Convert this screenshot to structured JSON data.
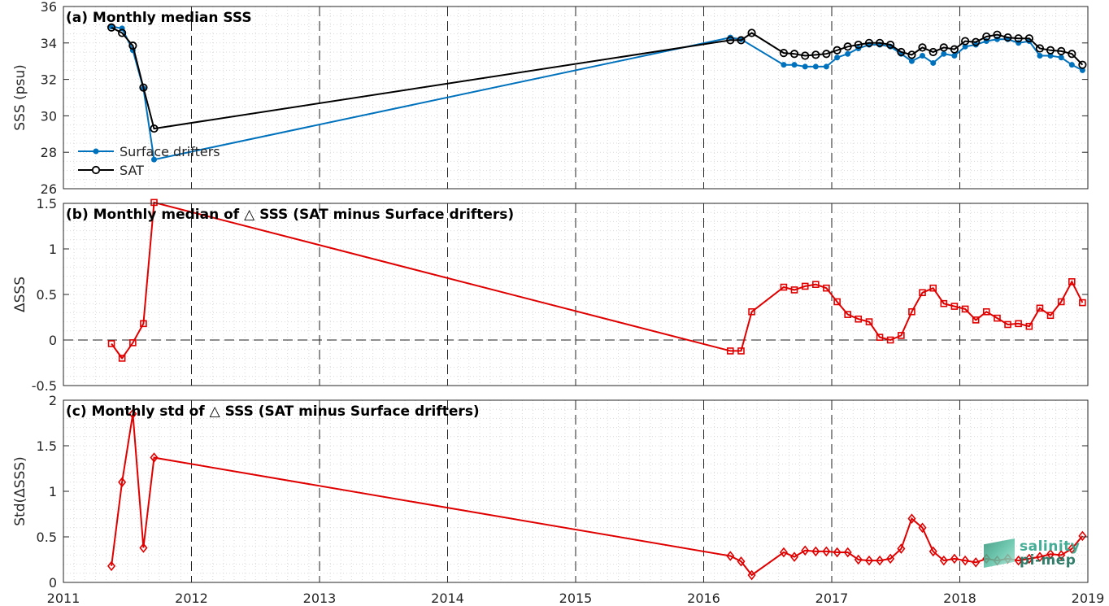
{
  "colors": {
    "drifters": "#0072BD",
    "sat": "#000000",
    "delta": "#E00000",
    "grid": "#d9d9d9",
    "axis": "#262626"
  },
  "watermark": {
    "line1": "salinity",
    "line2": "pi-mep"
  },
  "chart_data": [
    {
      "type": "line",
      "title": "(a) Monthly median SSS",
      "ylabel": "SSS (psu)",
      "xlim": [
        2011,
        2019
      ],
      "ylim": [
        26,
        36
      ],
      "x_ticks": [
        "2011",
        "2012",
        "2013",
        "2014",
        "2015",
        "2016",
        "2017",
        "2018",
        "2019"
      ],
      "y_ticks": [
        "26",
        "28",
        "30",
        "32",
        "34",
        "36"
      ],
      "grid": "minor dotted, yearly dashed verticals",
      "legend": {
        "placement": "lower-left",
        "entries": [
          "Surface drifters",
          "SAT"
        ]
      },
      "series": [
        {
          "name": "Surface drifters",
          "marker": "dot",
          "x": [
            2011.375,
            2011.458,
            2011.542,
            2011.625,
            2011.708,
            2016.208,
            2016.292,
            2016.625,
            2016.708,
            2016.792,
            2016.875,
            2016.958,
            2017.042,
            2017.125,
            2017.208,
            2017.292,
            2017.375,
            2017.458,
            2017.542,
            2017.625,
            2017.708,
            2017.792,
            2017.875,
            2017.958,
            2018.042,
            2018.125,
            2018.208,
            2018.292,
            2018.375,
            2018.458,
            2018.542,
            2018.625,
            2018.708,
            2018.792,
            2018.875,
            2018.958
          ],
          "y": [
            34.9,
            34.8,
            33.6,
            31.5,
            27.6,
            34.3,
            34.2,
            32.8,
            32.8,
            32.7,
            32.7,
            32.7,
            33.2,
            33.4,
            33.7,
            33.9,
            33.9,
            33.8,
            33.4,
            33.0,
            33.3,
            32.9,
            33.4,
            33.3,
            33.8,
            33.9,
            34.1,
            34.2,
            34.2,
            34.0,
            34.1,
            33.3,
            33.3,
            33.2,
            32.8,
            32.5
          ]
        },
        {
          "name": "SAT",
          "marker": "circle",
          "x": [
            2011.375,
            2011.458,
            2011.542,
            2011.625,
            2011.708,
            2016.208,
            2016.292,
            2016.375,
            2016.625,
            2016.708,
            2016.792,
            2016.875,
            2016.958,
            2017.042,
            2017.125,
            2017.208,
            2017.292,
            2017.375,
            2017.458,
            2017.542,
            2017.625,
            2017.708,
            2017.792,
            2017.875,
            2017.958,
            2018.042,
            2018.125,
            2018.208,
            2018.292,
            2018.375,
            2018.458,
            2018.542,
            2018.625,
            2018.708,
            2018.792,
            2018.875,
            2018.958
          ],
          "y": [
            34.85,
            34.55,
            33.85,
            31.55,
            29.3,
            34.15,
            34.15,
            34.55,
            33.45,
            33.4,
            33.3,
            33.35,
            33.4,
            33.6,
            33.8,
            33.9,
            34.0,
            34.0,
            33.9,
            33.5,
            33.35,
            33.75,
            33.5,
            33.75,
            33.65,
            34.1,
            34.05,
            34.35,
            34.45,
            34.3,
            34.25,
            34.25,
            33.7,
            33.6,
            33.55,
            33.4,
            32.8
          ]
        }
      ]
    },
    {
      "type": "line",
      "title": "(b) Monthly median of △ SSS (SAT minus Surface drifters)",
      "ylabel": "ΔSSS",
      "xlim": [
        2011,
        2019
      ],
      "ylim": [
        -0.5,
        1.5
      ],
      "y_ticks": [
        "-0.5",
        "0",
        "0.5",
        "1",
        "1.5"
      ],
      "reference_line": 0,
      "series": [
        {
          "marker": "square",
          "x": [
            2011.375,
            2011.458,
            2011.542,
            2011.625,
            2011.708,
            2016.208,
            2016.292,
            2016.375,
            2016.625,
            2016.708,
            2016.792,
            2016.875,
            2016.958,
            2017.042,
            2017.125,
            2017.208,
            2017.292,
            2017.375,
            2017.458,
            2017.542,
            2017.625,
            2017.708,
            2017.792,
            2017.875,
            2017.958,
            2018.042,
            2018.125,
            2018.208,
            2018.292,
            2018.375,
            2018.458,
            2018.542,
            2018.625,
            2018.708,
            2018.792,
            2018.875,
            2018.958
          ],
          "y": [
            -0.04,
            -0.2,
            -0.03,
            0.18,
            1.51,
            -0.12,
            -0.12,
            0.31,
            0.58,
            0.55,
            0.59,
            0.61,
            0.57,
            0.42,
            0.28,
            0.23,
            0.2,
            0.03,
            0.0,
            0.05,
            0.31,
            0.52,
            0.57,
            0.4,
            0.37,
            0.34,
            0.22,
            0.31,
            0.24,
            0.17,
            0.18,
            0.15,
            0.35,
            0.27,
            0.42,
            0.64,
            0.41
          ]
        }
      ]
    },
    {
      "type": "line",
      "title": "(c) Monthly std of △ SSS (SAT minus Surface drifters)",
      "ylabel": "Std(ΔSSS)",
      "xlim": [
        2011,
        2019
      ],
      "ylim": [
        0,
        2
      ],
      "y_ticks": [
        "0",
        "0.5",
        "1",
        "1.5",
        "2"
      ],
      "series": [
        {
          "marker": "diamond",
          "x": [
            2011.375,
            2011.458,
            2011.542,
            2011.625,
            2011.708,
            2016.208,
            2016.292,
            2016.375,
            2016.625,
            2016.708,
            2016.792,
            2016.875,
            2016.958,
            2017.042,
            2017.125,
            2017.208,
            2017.292,
            2017.375,
            2017.458,
            2017.542,
            2017.625,
            2017.708,
            2017.792,
            2017.875,
            2017.958,
            2018.042,
            2018.125,
            2018.208,
            2018.292,
            2018.375,
            2018.458,
            2018.542,
            2018.625,
            2018.708,
            2018.792,
            2018.875,
            2018.958
          ],
          "y": [
            0.18,
            1.1,
            1.85,
            0.38,
            1.37,
            0.29,
            0.23,
            0.08,
            0.33,
            0.28,
            0.35,
            0.34,
            0.34,
            0.33,
            0.33,
            0.25,
            0.24,
            0.24,
            0.26,
            0.37,
            0.7,
            0.6,
            0.34,
            0.24,
            0.26,
            0.24,
            0.22,
            0.26,
            0.24,
            0.26,
            0.24,
            0.26,
            0.28,
            0.31,
            0.3,
            0.37,
            0.51
          ]
        }
      ]
    }
  ]
}
